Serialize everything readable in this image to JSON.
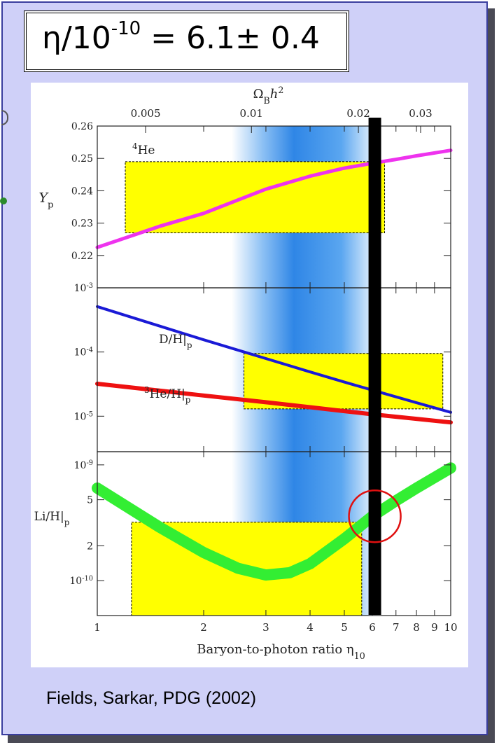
{
  "equation": {
    "symbol": "η/10",
    "exponent": "-10",
    "value": " = 6.1± 0.4"
  },
  "citation": "Fields, Sarkar, PDG (2002)",
  "colors": {
    "slide_bg": "#cfd0f8",
    "slide_border": "#3a3e9e",
    "cmb_band": "#2f86e6",
    "observation_box": "#ffff00",
    "helium4_curve": "#ee33ee",
    "deuterium_curve": "#1a1ad6",
    "helium3_curve": "#ee1111",
    "lithium7_curve": "#33ee33",
    "eta_marker": "#000000",
    "highlight_circle": "#e01010"
  },
  "chart_data": {
    "type": "line",
    "xscale": "log",
    "xlim": [
      1,
      10
    ],
    "xlabel": "Baryon-to-photon ratio η",
    "xlabel_sub": "10",
    "xticks": [
      "1",
      "2",
      "3",
      "4",
      "5",
      "6",
      "7",
      "8",
      "9",
      "10"
    ],
    "top_axis": {
      "label": "Ω",
      "label_sub": "B",
      "label_tail": "h",
      "label_sup": "2",
      "ticks": [
        {
          "label": "0.005",
          "eta": 1.37
        },
        {
          "label": "0.01",
          "eta": 2.73
        },
        {
          "label": "0.02",
          "eta": 5.48
        },
        {
          "label": "0.03",
          "eta": 8.22
        }
      ]
    },
    "cmb_band": {
      "eta_center": 3.6,
      "eta_range": [
        2.4,
        6.3
      ]
    },
    "eta_marker": 6.1,
    "highlight_circle": {
      "eta": 6.1,
      "li_h": 3.6e-10
    },
    "panels": [
      {
        "ylabel": "Y",
        "ylabel_sub": "p",
        "scale": "linear",
        "ylim": [
          0.21,
          0.26
        ],
        "yticks": [
          "0.26",
          "0.25",
          "0.24",
          "0.23",
          "0.22"
        ],
        "series": [
          {
            "name": "4He",
            "name_sup": "4",
            "name_base": "He",
            "x": [
              1,
              1.5,
              2,
              3,
              4,
              5,
              6,
              7,
              8,
              10
            ],
            "y": [
              0.2225,
              0.229,
              0.233,
              0.2405,
              0.2445,
              0.247,
              0.2485,
              0.2497,
              0.2508,
              0.2525
            ]
          }
        ],
        "observation": {
          "x": [
            1.2,
            6.5
          ],
          "y": [
            0.227,
            0.249
          ]
        }
      },
      {
        "scale": "log",
        "ylim": [
          2.8e-06,
          0.001
        ],
        "yticks": [
          {
            "base": "10",
            "exp": "-3",
            "value": 0.001
          },
          {
            "base": "10",
            "exp": "-4",
            "value": 0.0001
          },
          {
            "base": "10",
            "exp": "-5",
            "value": 1e-05
          }
        ],
        "series": [
          {
            "name": "D/H|p",
            "label_base": "D/H|",
            "label_sub": "p",
            "x": [
              1,
              2,
              3,
              4,
              5,
              6,
              7,
              8,
              10
            ],
            "y": [
              0.00051,
              0.000155,
              7.9e-05,
              4.9e-05,
              3.4e-05,
              2.55e-05,
              2e-05,
              1.62e-05,
              1.15e-05
            ]
          },
          {
            "name": "3He/H|p",
            "label_sup": "3",
            "label_base": "He/H|",
            "label_sub": "p",
            "x": [
              1,
              2,
              3,
              4,
              5,
              6,
              7,
              8,
              10
            ],
            "y": [
              3.2e-05,
              2.1e-05,
              1.65e-05,
              1.38e-05,
              1.2e-05,
              1.07e-05,
              9.8e-06,
              9.1e-06,
              8e-06
            ]
          }
        ],
        "observation": {
          "x": [
            2.6,
            9.5
          ],
          "y": [
            1.3e-05,
            9.5e-05
          ]
        }
      },
      {
        "ylabel": "Li/H|",
        "ylabel_sub": "p",
        "scale": "log",
        "ylim": [
          5e-11,
          1.3e-09
        ],
        "yticks": [
          {
            "label": "10",
            "exp": "-9",
            "value": 1e-09
          },
          {
            "label": "5",
            "value": 5e-10
          },
          {
            "label": "2",
            "value": 2e-10
          },
          {
            "label": "10",
            "exp": "-10",
            "value": 1e-10
          }
        ],
        "series": [
          {
            "name": "7Li",
            "x": [
              1,
              1.5,
              2,
              2.5,
              3,
              3.5,
              4,
              5,
              6,
              7,
              8,
              10
            ],
            "y": [
              6.3e-10,
              2.9e-10,
              1.75e-10,
              1.28e-10,
              1.12e-10,
              1.17e-10,
              1.4e-10,
              2.3e-10,
              3.6e-10,
              4.9e-10,
              6.3e-10,
              9.4e-10
            ]
          }
        ],
        "observation": {
          "x": [
            1.25,
            5.6
          ],
          "y": [
            5e-11,
            3.2e-10
          ]
        }
      }
    ]
  }
}
